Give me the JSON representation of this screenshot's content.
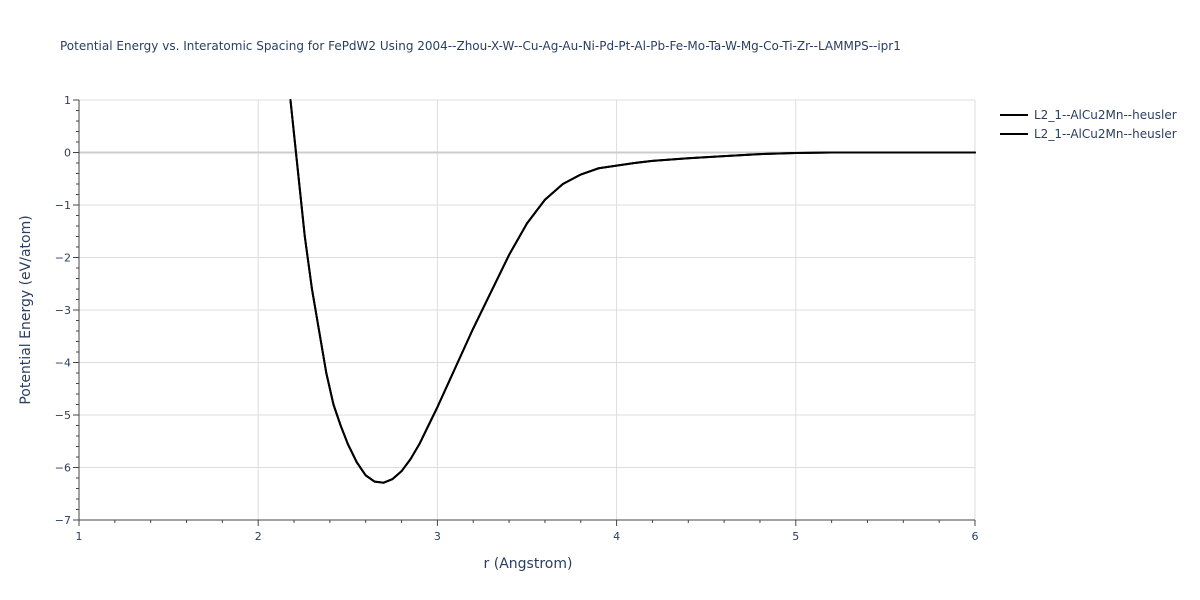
{
  "chart_data": {
    "type": "line",
    "title": "Potential Energy vs. Interatomic Spacing for FePdW2 Using 2004--Zhou-X-W--Cu-Ag-Au-Ni-Pd-Pt-Al-Pb-Fe-Mo-Ta-W-Mg-Co-Ti-Zr--LAMMPS--ipr1",
    "xlabel": "r (Angstrom)",
    "ylabel": "Potential Energy (eV/atom)",
    "xlim": [
      1,
      6
    ],
    "ylim": [
      -7,
      1
    ],
    "xticks": [
      1,
      2,
      3,
      4,
      5,
      6
    ],
    "yticks": [
      1,
      0,
      -1,
      -2,
      -3,
      -4,
      -5,
      -6,
      -7
    ],
    "xtick_labels": [
      "1",
      "2",
      "3",
      "4",
      "5",
      "6"
    ],
    "ytick_labels": [
      "1",
      "0",
      "−1",
      "−2",
      "−3",
      "−4",
      "−5",
      "−6",
      "−7"
    ],
    "grid": true,
    "legend_position": "top-right",
    "series": [
      {
        "name": "L2_1--AlCu2Mn--heusler",
        "color": "#000000",
        "x": [
          2.18,
          2.22,
          2.26,
          2.3,
          2.34,
          2.38,
          2.42,
          2.46,
          2.5,
          2.55,
          2.6,
          2.65,
          2.7,
          2.75,
          2.8,
          2.85,
          2.9,
          2.95,
          3.0,
          3.1,
          3.2,
          3.3,
          3.4,
          3.5,
          3.6,
          3.7,
          3.8,
          3.9,
          4.0,
          4.1,
          4.2,
          4.4,
          4.6,
          4.8,
          5.0,
          5.2,
          5.5,
          5.8,
          6.0
        ],
        "y": [
          1.0,
          -0.3,
          -1.6,
          -2.6,
          -3.4,
          -4.2,
          -4.8,
          -5.2,
          -5.55,
          -5.9,
          -6.15,
          -6.27,
          -6.29,
          -6.22,
          -6.07,
          -5.84,
          -5.55,
          -5.2,
          -4.85,
          -4.1,
          -3.35,
          -2.65,
          -1.95,
          -1.35,
          -0.9,
          -0.6,
          -0.42,
          -0.3,
          -0.25,
          -0.2,
          -0.16,
          -0.11,
          -0.07,
          -0.03,
          -0.01,
          0.0,
          0.0,
          0.0,
          0.0
        ]
      },
      {
        "name": "L2_1--AlCu2Mn--heusler",
        "color": "#000000",
        "x": [
          2.18,
          2.22,
          2.26,
          2.3,
          2.34,
          2.38,
          2.42,
          2.46,
          2.5,
          2.55,
          2.6,
          2.65,
          2.7,
          2.75,
          2.8,
          2.85,
          2.9,
          2.95,
          3.0,
          3.1,
          3.2,
          3.3,
          3.4,
          3.5,
          3.6,
          3.7,
          3.8,
          3.9,
          4.0,
          4.1,
          4.2,
          4.4,
          4.6,
          4.8,
          5.0,
          5.2,
          5.5,
          5.8,
          6.0
        ],
        "y": [
          1.0,
          -0.3,
          -1.6,
          -2.6,
          -3.4,
          -4.2,
          -4.8,
          -5.2,
          -5.55,
          -5.9,
          -6.15,
          -6.27,
          -6.29,
          -6.22,
          -6.07,
          -5.84,
          -5.55,
          -5.2,
          -4.85,
          -4.1,
          -3.35,
          -2.65,
          -1.95,
          -1.35,
          -0.9,
          -0.6,
          -0.42,
          -0.3,
          -0.25,
          -0.2,
          -0.16,
          -0.11,
          -0.07,
          -0.03,
          -0.01,
          0.0,
          0.0,
          0.0,
          0.0
        ]
      }
    ]
  }
}
